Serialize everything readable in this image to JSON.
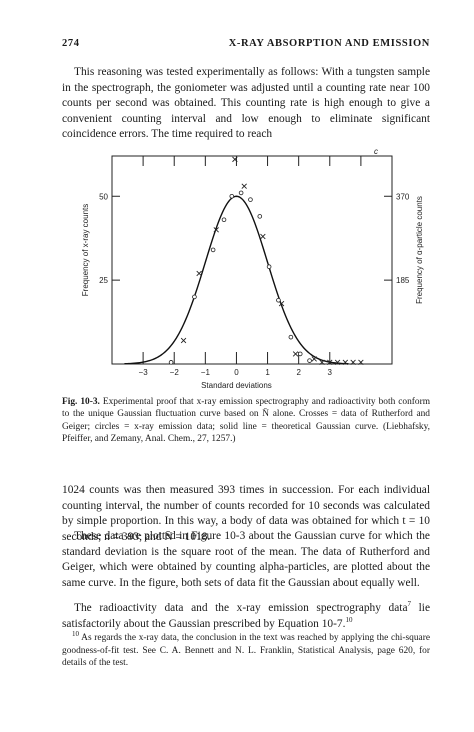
{
  "header": {
    "page_number": "274",
    "running_title": "X-RAY ABSORPTION AND EMISSION"
  },
  "para1": "This reasoning was tested experimentally as follows: With a tungsten sample in the spectrograph, the goniometer was adjusted until a counting rate near 100 counts per second was obtained.  This counting rate is high enough to give a convenient counting interval and low enough to eliminate significant coincidence errors.  The time required to reach",
  "figure": {
    "corner_mark": "c",
    "chart_data": {
      "type": "scatter",
      "xlabel": "Standard deviations",
      "ylabel_left": "Frequency of x-ray counts",
      "ylabel_right": "Frequency of α-particle counts",
      "x_ticks": [
        "−3",
        "−2",
        "−1",
        "0",
        "1",
        "2",
        "3"
      ],
      "x_tick_values": [
        -3,
        -2,
        -1,
        0,
        1,
        2,
        3
      ],
      "y_left_ticks": [
        "50",
        "25"
      ],
      "y_left_tick_values": [
        50,
        25
      ],
      "y_right_ticks": [
        "370",
        "185"
      ],
      "xlim": [
        -4,
        5
      ],
      "ylim": [
        0,
        62
      ],
      "series": [
        {
          "marker": "solid line",
          "points": "gaussian",
          "mean": 0,
          "sd": 1,
          "peak": 50
        },
        {
          "marker": "x",
          "x": [
            -1.7,
            -1.2,
            -0.65,
            -0.05,
            0.25,
            0.85,
            1.45,
            1.9,
            2.5,
            2.75,
            3.0,
            3.25,
            3.5,
            3.75,
            4.0
          ],
          "y": [
            7,
            27,
            40,
            61,
            53,
            38,
            18,
            3,
            1.5,
            0.5,
            0.5,
            0.5,
            0.5,
            0.5,
            0.5
          ]
        },
        {
          "marker": "o",
          "x": [
            -2.1,
            -1.35,
            -0.75,
            -0.4,
            -0.15,
            0.15,
            0.45,
            0.75,
            1.05,
            1.35,
            1.75,
            2.05,
            2.35
          ],
          "y": [
            0.5,
            20,
            34,
            43,
            50,
            51,
            49,
            44,
            29,
            19,
            8,
            3,
            1
          ]
        }
      ]
    }
  },
  "caption": {
    "label": "Fig. 10-3.",
    "text": "Experimental proof that x-ray emission spectrography and radioactivity both conform to the unique Gaussian fluctuation curve based on N̄ alone. Crosses = data of Rutherford and Geiger; circles = x-ray emission data; solid line = theoretical Gaussian curve. (Liebhafsky, Pfeiffer, and Zemany, Anal. Chem., 27, 1257.)"
  },
  "para2": "1024 counts was then measured 393 times in succession.  For each individual counting interval, the number of counts recorded for 10 seconds was calculated by simple proportion.  In this way, a body of data was obtained for which t = 10 seconds; n = 393; and N̄ = 1018.",
  "para3": "These data are plotted in Figure 10-3 about the Gaussian curve for which the standard deviation is the square root of the mean.  The data of Rutherford and Geiger, which were obtained by counting alpha-particles, are plotted about the same curve.  In the figure, both sets of data fit the Gaussian about equally well.",
  "para4": {
    "text": "The radioactivity data and the x-ray emission spectrography data",
    "ref1": "7",
    "text2": " lie satisfactorily about the Gaussian prescribed by Equation 10-7.",
    "ref2": "10"
  },
  "footnote": {
    "mark": "10",
    "text": " As regards the x-ray data, the conclusion in the text was reached by applying the chi-square goodness-of-fit test.  See C. A. Bennett and N. L. Franklin, Statistical Analysis, page 620, for details of the test."
  }
}
